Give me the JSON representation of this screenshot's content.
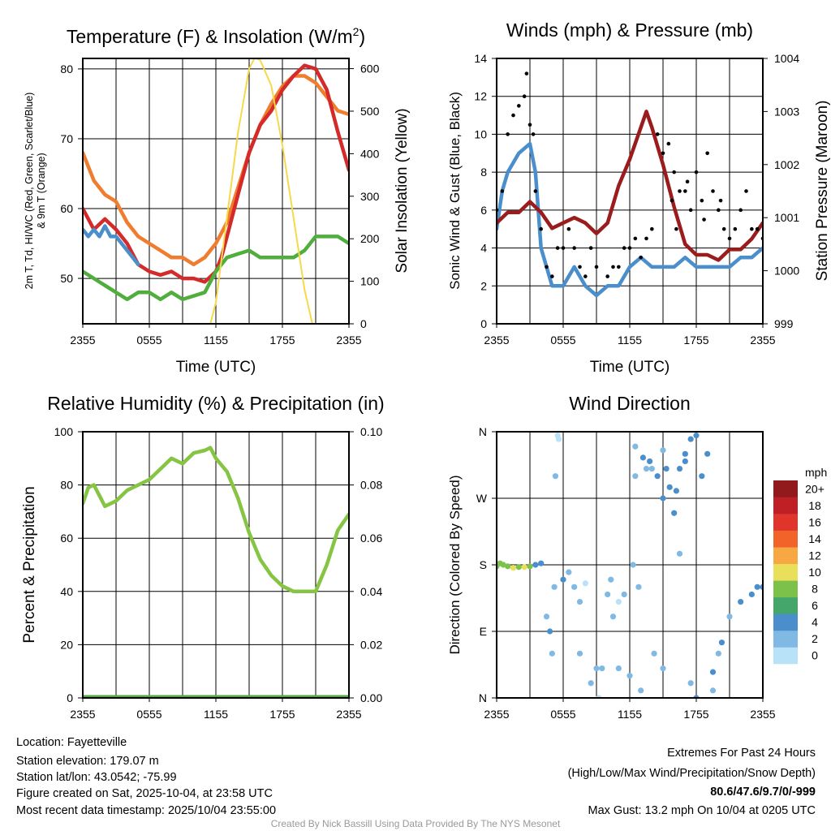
{
  "footer": {
    "location": "Location: Fayetteville",
    "elevation": "Station elevation: 179.07 m",
    "latlon": "Station lat/lon: 43.0542; -75.99",
    "created": "Figure created on Sat, 2025-10-04, at 23:58 UTC",
    "recent": "Most recent data timestamp: 2025/10/04 23:55:00",
    "extremes_title": "Extremes For Past 24 Hours",
    "extremes_sub": "(High/Low/Max Wind/Precipitation/Snow Depth)",
    "extremes_values": "80.6/47.6/9.7/0/-999",
    "max_gust": "Max Gust: 13.2 mph On 10/04 at 0205 UTC",
    "credit": "Created By Nick Bassill Using Data Provided By The NYS Mesonet"
  },
  "colors": {
    "red": "#d42a2a",
    "orange": "#f07d2e",
    "green": "#4fae3c",
    "blue": "#4a8fcc",
    "yellow": "#f5d949",
    "maroon": "#9b1c1c",
    "black": "#000000",
    "rh": "#86c443",
    "extreme": "#d42a2a"
  },
  "chart_data": [
    {
      "type": "line",
      "title": "Temperature (F) & Insolation (W/m",
      "title_sup": "2",
      "title_end": ")",
      "xlabel": "Time (UTC)",
      "ylabel_line1": "2m T, Td, HI/WC (Red, Green, Scarlet/Blue)",
      "ylabel_line2": "& 9m T (Orange)",
      "ylabel_right": "Solar Insolation (Yellow)",
      "xticks": [
        "2355",
        "0555",
        "1155",
        "1755",
        "2355"
      ],
      "yticks": [
        "50",
        "60",
        "70",
        "80"
      ],
      "yticks_right": [
        "0",
        "100",
        "200",
        "300",
        "400",
        "500",
        "600"
      ],
      "ylim": [
        43.5,
        81.5
      ],
      "ylim_right": [
        0,
        624
      ],
      "series": [
        {
          "name": "9m T",
          "color": "orange",
          "axis": "left",
          "x": [
            0,
            1,
            2,
            3,
            4,
            5,
            6,
            7,
            8,
            9,
            10,
            11,
            12,
            13,
            14,
            15,
            16,
            17,
            18,
            19,
            20,
            21,
            22,
            23,
            24
          ],
          "y": [
            68,
            64,
            62,
            61,
            58,
            56,
            55,
            54,
            53,
            53,
            52,
            53,
            55,
            58,
            63,
            68,
            72,
            75,
            77.5,
            79,
            79,
            78,
            76,
            74,
            73.5
          ]
        },
        {
          "name": "2m T",
          "color": "red",
          "axis": "left",
          "x": [
            0,
            1,
            2,
            3,
            4,
            5,
            6,
            7,
            8,
            9,
            10,
            11,
            12,
            12.5,
            13,
            14,
            15,
            16,
            17,
            18,
            19,
            20,
            21,
            22,
            23,
            24
          ],
          "y": [
            60,
            57,
            58.5,
            57,
            55,
            52,
            51,
            50.5,
            51,
            50,
            50,
            49.5,
            51,
            53,
            56,
            62,
            68,
            72,
            74,
            77,
            79,
            80.5,
            80,
            77,
            71,
            65.5
          ]
        },
        {
          "name": "HI/WC",
          "color": "blue",
          "axis": "left",
          "x": [
            0,
            0.5,
            1,
            1.5,
            2,
            2.5,
            3,
            3.5,
            4,
            4.5,
            5
          ],
          "y": [
            57,
            56,
            57,
            56,
            57.5,
            56,
            56,
            55,
            54,
            53,
            52
          ]
        },
        {
          "name": "2m Td",
          "color": "green",
          "axis": "left",
          "x": [
            0,
            1,
            2,
            3,
            4,
            5,
            6,
            7,
            8,
            9,
            10,
            11,
            12,
            13,
            14,
            15,
            16,
            17,
            18,
            19,
            20,
            21,
            22,
            23,
            24
          ],
          "y": [
            51,
            50,
            49,
            48,
            47,
            48,
            48,
            47,
            48,
            47,
            47.5,
            48,
            51,
            53,
            53.5,
            54,
            53,
            53,
            53,
            53,
            54,
            56,
            56,
            56,
            55
          ]
        },
        {
          "name": "Solar Insolation",
          "color": "yellow",
          "axis": "right",
          "x": [
            0,
            11.5,
            12,
            13,
            14,
            15,
            15.5,
            16,
            17,
            18,
            19,
            20,
            20.7,
            24
          ],
          "y": [
            0,
            0,
            50,
            250,
            450,
            600,
            625,
            620,
            560,
            420,
            250,
            80,
            0,
            0
          ]
        }
      ]
    },
    {
      "type": "line",
      "title": "Winds (mph) & Pressure (mb)",
      "xlabel": "Time (UTC)",
      "ylabel": "Sonic Wind & Gust (Blue, Black)",
      "ylabel_right": "Station Pressure (Maroon)",
      "xticks": [
        "2355",
        "0555",
        "1155",
        "1755",
        "2355"
      ],
      "yticks": [
        "0",
        "2",
        "4",
        "6",
        "8",
        "10",
        "12",
        "14"
      ],
      "yticks_right": [
        "999",
        "1000",
        "1001",
        "1002",
        "1003",
        "1004"
      ],
      "ylim": [
        0,
        14
      ],
      "ylim_right": [
        999,
        1004
      ],
      "series": [
        {
          "name": "Sonic Wind",
          "color": "blue",
          "axis": "left",
          "x": [
            0,
            0.5,
            1,
            2,
            3,
            3.5,
            4,
            5,
            6,
            7,
            8,
            9,
            10,
            11,
            12,
            13,
            14,
            15,
            16,
            17,
            18,
            19,
            20,
            21,
            22,
            23,
            24
          ],
          "y": [
            5,
            7,
            8,
            9,
            9.5,
            8,
            4,
            2,
            2,
            3,
            2,
            1.5,
            2,
            2,
            3,
            3.5,
            3,
            3,
            3,
            3.5,
            3,
            3,
            3,
            3,
            3.5,
            3.5,
            4
          ]
        },
        {
          "name": "Station Pressure",
          "color": "maroon",
          "axis": "right",
          "x": [
            0,
            1,
            2,
            3,
            4,
            5,
            6,
            7,
            8,
            9,
            10,
            11,
            12,
            13,
            13.5,
            14,
            15,
            16,
            17,
            18,
            19,
            20,
            21,
            22,
            23,
            24
          ],
          "y": [
            1000.9,
            1001.1,
            1001.1,
            1001.3,
            1001.1,
            1000.8,
            1000.9,
            1001.0,
            1000.9,
            1000.7,
            1000.9,
            1001.6,
            1002.1,
            1002.7,
            1003.0,
            1002.7,
            1002.0,
            1001.2,
            1000.5,
            1000.3,
            1000.3,
            1000.2,
            1000.4,
            1000.4,
            1000.6,
            1000.9
          ]
        }
      ],
      "gusts": [
        [
          0,
          6
        ],
        [
          0.5,
          7
        ],
        [
          1,
          10
        ],
        [
          1.5,
          11
        ],
        [
          2,
          11.5
        ],
        [
          2.5,
          12
        ],
        [
          2.7,
          13.2
        ],
        [
          3,
          10.5
        ],
        [
          3.3,
          10
        ],
        [
          3.5,
          7
        ],
        [
          4,
          5
        ],
        [
          4.5,
          3
        ],
        [
          5,
          2.5
        ],
        [
          5.5,
          4
        ],
        [
          6,
          4
        ],
        [
          6.5,
          5
        ],
        [
          7,
          4
        ],
        [
          7.5,
          3
        ],
        [
          8,
          2.5
        ],
        [
          8.5,
          4
        ],
        [
          9,
          3
        ],
        [
          10,
          2.5
        ],
        [
          10.5,
          3
        ],
        [
          11,
          3
        ],
        [
          11.5,
          4
        ],
        [
          12,
          4
        ],
        [
          12.5,
          4.5
        ],
        [
          13,
          3.5
        ],
        [
          13.5,
          4.5
        ],
        [
          14,
          5
        ],
        [
          14.5,
          10
        ],
        [
          15,
          9
        ],
        [
          15.5,
          9.5
        ],
        [
          15.8,
          6.5
        ],
        [
          16,
          8
        ],
        [
          16.2,
          5
        ],
        [
          16.5,
          7
        ],
        [
          17,
          7
        ],
        [
          17.2,
          7.5
        ],
        [
          17.5,
          6
        ],
        [
          18,
          8
        ],
        [
          18.5,
          6.5
        ],
        [
          18.7,
          5.5
        ],
        [
          19,
          9
        ],
        [
          19.5,
          7
        ],
        [
          20,
          6
        ],
        [
          20.2,
          6.5
        ],
        [
          20.5,
          5
        ],
        [
          21,
          4.5
        ],
        [
          21.5,
          5
        ],
        [
          22,
          6
        ],
        [
          22.5,
          7
        ],
        [
          23,
          5
        ],
        [
          23.5,
          5
        ],
        [
          24,
          4.5
        ]
      ]
    },
    {
      "type": "line",
      "title": "Relative Humidity (%) & Precipitation (in)",
      "ylabel": "Percent & Precipitation",
      "xticks": [
        "2355",
        "0555",
        "1155",
        "1755",
        "2355"
      ],
      "yticks": [
        "0",
        "20",
        "40",
        "60",
        "80",
        "100"
      ],
      "yticks_right": [
        "0.00",
        "0.02",
        "0.04",
        "0.06",
        "0.08",
        "0.10"
      ],
      "ylim": [
        0,
        100
      ],
      "ylim_right": [
        0,
        0.1
      ],
      "series": [
        {
          "name": "Relative Humidity",
          "color": "rh",
          "axis": "left",
          "x": [
            0,
            0.5,
            1,
            2,
            3,
            4,
            5,
            6,
            7,
            8,
            9,
            10,
            11,
            11.5,
            12,
            13,
            14,
            15,
            16,
            17,
            18,
            19,
            20,
            21,
            22,
            23,
            24
          ],
          "y": [
            73,
            79,
            80,
            72,
            74,
            78,
            80,
            82,
            86,
            90,
            88,
            92,
            93,
            94,
            90,
            85,
            75,
            62,
            52,
            46,
            42,
            40,
            40,
            40,
            50,
            63,
            69
          ]
        },
        {
          "name": "Precipitation",
          "color": "green",
          "axis": "right",
          "x": [
            0,
            24
          ],
          "y": [
            0,
            0
          ]
        }
      ]
    },
    {
      "type": "scatter",
      "title": "Wind Direction",
      "ylabel": "Direction (Colored By Speed)",
      "xticks": [
        "2355",
        "0555",
        "1155",
        "1755",
        "2355"
      ],
      "yticks": [
        "N",
        "E",
        "S",
        "W",
        "N"
      ],
      "ylim": [
        0,
        360
      ],
      "colorbar_title": "mph",
      "colorbar_labels": [
        "0",
        "2",
        "4",
        "6",
        "8",
        "10",
        "12",
        "14",
        "16",
        "18",
        "20+"
      ],
      "colorbar_colors": [
        "#b8e2f7",
        "#7fb9e4",
        "#4a8fcc",
        "#45a66c",
        "#7cc24a",
        "#e8e05a",
        "#f7a842",
        "#f2632a",
        "#e0352a",
        "#c11f26",
        "#921a1d"
      ],
      "points": [
        [
          0,
          178,
          8
        ],
        [
          0.3,
          182,
          8
        ],
        [
          0.6,
          180,
          8
        ],
        [
          1,
          178,
          9
        ],
        [
          1.5,
          176,
          10
        ],
        [
          2,
          177,
          9
        ],
        [
          2.5,
          177,
          10
        ],
        [
          3,
          178,
          8
        ],
        [
          3.5,
          180,
          4
        ],
        [
          4,
          182,
          4
        ],
        [
          4.5,
          110,
          2
        ],
        [
          4.8,
          90,
          4
        ],
        [
          5,
          60,
          3
        ],
        [
          5.2,
          150,
          2
        ],
        [
          5.5,
          355,
          1
        ],
        [
          5.6,
          350,
          1
        ],
        [
          5.3,
          300,
          2
        ],
        [
          6,
          160,
          4
        ],
        [
          6.5,
          170,
          3
        ],
        [
          7,
          150,
          2
        ],
        [
          7.5,
          130,
          3
        ],
        [
          7.5,
          60,
          2
        ],
        [
          8,
          155,
          1
        ],
        [
          8.5,
          20,
          2
        ],
        [
          9,
          40,
          3
        ],
        [
          9.2,
          0,
          1
        ],
        [
          9.5,
          40,
          2
        ],
        [
          10,
          140,
          3
        ],
        [
          10.3,
          160,
          2
        ],
        [
          10.5,
          110,
          2
        ],
        [
          11,
          130,
          1
        ],
        [
          11,
          40,
          2
        ],
        [
          11.5,
          140,
          2
        ],
        [
          12,
          30,
          3
        ],
        [
          12.3,
          180,
          2
        ],
        [
          12.5,
          340,
          2
        ],
        [
          12.5,
          300,
          2
        ],
        [
          12.8,
          150,
          2
        ],
        [
          13,
          10,
          3
        ],
        [
          13.2,
          325,
          4
        ],
        [
          13.5,
          310,
          3
        ],
        [
          13.8,
          320,
          4
        ],
        [
          14,
          310,
          3
        ],
        [
          14.2,
          60,
          2
        ],
        [
          14.5,
          300,
          4
        ],
        [
          15,
          270,
          4
        ],
        [
          15,
          335,
          3
        ],
        [
          15,
          40,
          3
        ],
        [
          15.3,
          310,
          5
        ],
        [
          15.6,
          285,
          4
        ],
        [
          16,
          250,
          5
        ],
        [
          16.2,
          280,
          4
        ],
        [
          16.5,
          310,
          5
        ],
        [
          16.5,
          195,
          3
        ],
        [
          17,
          320,
          5
        ],
        [
          17,
          330,
          4
        ],
        [
          17.5,
          350,
          4
        ],
        [
          17.5,
          20,
          3
        ],
        [
          18,
          355,
          5
        ],
        [
          18,
          0,
          4
        ],
        [
          18.5,
          300,
          4
        ],
        [
          19,
          330,
          4
        ],
        [
          19.5,
          35,
          4
        ],
        [
          19.5,
          10,
          2
        ],
        [
          20,
          60,
          3
        ],
        [
          20.3,
          75,
          4
        ],
        [
          21,
          110,
          3
        ],
        [
          22,
          130,
          4
        ],
        [
          23,
          140,
          4
        ],
        [
          23.5,
          150,
          4
        ],
        [
          24,
          150,
          4
        ]
      ]
    }
  ]
}
